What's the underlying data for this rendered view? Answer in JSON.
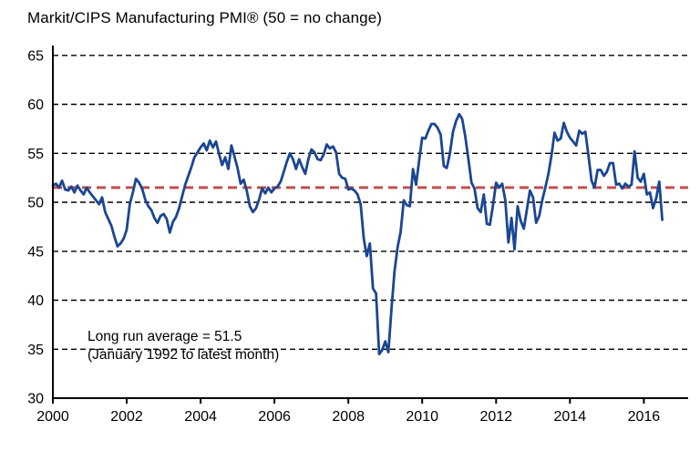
{
  "chart_data": {
    "type": "line",
    "title": "Markit/CIPS Manufacturing PMI® (50 = no change)",
    "annotation": {
      "line1": "Long run average = 51.5",
      "line2": "(January 1992 to latest month)"
    },
    "long_run_average": 51.5,
    "ylim": [
      30,
      66
    ],
    "yticks": [
      30,
      35,
      40,
      45,
      50,
      55,
      60,
      65
    ],
    "gridline_yticks": [
      35,
      40,
      45,
      50,
      55,
      60,
      65
    ],
    "xlim": [
      2000,
      2017.2
    ],
    "xticks": [
      2000,
      2002,
      2004,
      2006,
      2008,
      2010,
      2012,
      2014,
      2016
    ],
    "grid": true,
    "legend": "none",
    "colors": {
      "series_line": "#1a4693",
      "average_line": "#c0504d",
      "grid_line": "#000000",
      "axis_line": "#000000"
    },
    "series": [
      {
        "name": "Manufacturing PMI",
        "frequency": "monthly",
        "start_year": 2000,
        "start_month": 1,
        "values": [
          51.7,
          51.9,
          51.5,
          52.2,
          51.3,
          51.2,
          51.6,
          51.0,
          51.7,
          51.2,
          50.8,
          51.5,
          51.0,
          50.6,
          50.2,
          49.8,
          50.5,
          49.0,
          48.3,
          47.6,
          46.5,
          45.5,
          45.8,
          46.3,
          47.2,
          49.8,
          51.0,
          52.4,
          52.0,
          51.4,
          50.3,
          49.6,
          49.2,
          48.4,
          47.9,
          48.6,
          48.8,
          48.3,
          46.9,
          48.0,
          48.5,
          49.4,
          50.6,
          51.8,
          52.7,
          53.6,
          54.6,
          55.1,
          55.6,
          56.0,
          55.3,
          56.3,
          55.6,
          56.2,
          54.9,
          53.8,
          54.6,
          53.4,
          55.8,
          54.7,
          53.5,
          51.9,
          52.3,
          51.2,
          49.6,
          49.0,
          49.4,
          50.3,
          51.4,
          50.9,
          51.5,
          51.0,
          51.4,
          51.6,
          52.1,
          53.1,
          54.1,
          55.0,
          54.4,
          53.4,
          54.4,
          53.6,
          52.9,
          54.4,
          55.4,
          55.1,
          54.4,
          54.3,
          54.9,
          55.9,
          55.5,
          55.7,
          55.1,
          52.9,
          52.5,
          52.4,
          51.3,
          51.4,
          51.2,
          50.8,
          49.8,
          46.3,
          44.5,
          45.8,
          41.2,
          40.7,
          34.5,
          34.9,
          35.8,
          34.7,
          39.1,
          42.9,
          45.4,
          47.0,
          50.2,
          49.7,
          49.6,
          53.4,
          51.8,
          54.3,
          56.6,
          56.5,
          57.3,
          58.0,
          58.0,
          57.6,
          56.9,
          53.7,
          53.5,
          55.0,
          57.2,
          58.3,
          59.0,
          58.5,
          56.7,
          54.4,
          52.0,
          51.4,
          49.4,
          49.0,
          50.8,
          47.8,
          47.7,
          49.7,
          52.0,
          51.5,
          51.9,
          50.2,
          45.9,
          48.4,
          45.2,
          49.6,
          48.1,
          47.3,
          49.2,
          51.2,
          50.5,
          47.9,
          48.6,
          50.2,
          51.5,
          52.9,
          54.8,
          57.1,
          56.3,
          56.5,
          58.1,
          57.2,
          56.6,
          56.2,
          55.8,
          57.3,
          57.0,
          57.2,
          54.8,
          52.2,
          51.5,
          53.3,
          53.3,
          52.7,
          53.1,
          54.0,
          54.0,
          51.8,
          51.9,
          51.4,
          51.9,
          51.6,
          51.8,
          55.2,
          52.5,
          52.1,
          52.9,
          50.8,
          51.0,
          49.4,
          50.4,
          52.1,
          48.2
        ]
      }
    ]
  }
}
